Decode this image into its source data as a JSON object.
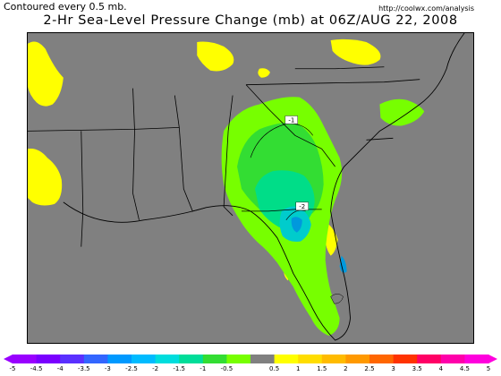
{
  "header": {
    "contour_note": "Contoured every 0.5 mb.",
    "source_url": "http://coolwx.com/analysis",
    "title": "2-Hr Sea-Level Pressure Change (mb) at 06Z/AUG 22, 2008"
  },
  "map": {
    "contour_labels": [
      "-1",
      "-2"
    ],
    "colors": {
      "background": "#808080",
      "zero_band": "#808080",
      "positive_0_5": "#ffff00",
      "negative_0_5": "#7fff00",
      "negative_1": "#33dd33",
      "negative_1_5": "#00dd88",
      "negative_2": "#00cccc",
      "negative_2_5": "#0099dd",
      "borders": "#000000"
    }
  },
  "legend": {
    "labels": [
      "-5",
      "-4.5",
      "-4",
      "-3.5",
      "-3",
      "-2.5",
      "-2",
      "-1.5",
      "-1",
      "-0.5",
      "0.5",
      "1",
      "1.5",
      "2",
      "2.5",
      "3",
      "3.5",
      "4",
      "4.5",
      "5"
    ],
    "colors": [
      "#9900ff",
      "#7a00ff",
      "#5a30ff",
      "#3366ff",
      "#0099ff",
      "#00bbff",
      "#00dddd",
      "#00dd99",
      "#33dd33",
      "#77ff00",
      "#808080",
      "#ffff00",
      "#ffdd00",
      "#ffbb00",
      "#ff9900",
      "#ff6600",
      "#ff3300",
      "#ff0066",
      "#ff00aa",
      "#ff00dd"
    ]
  }
}
